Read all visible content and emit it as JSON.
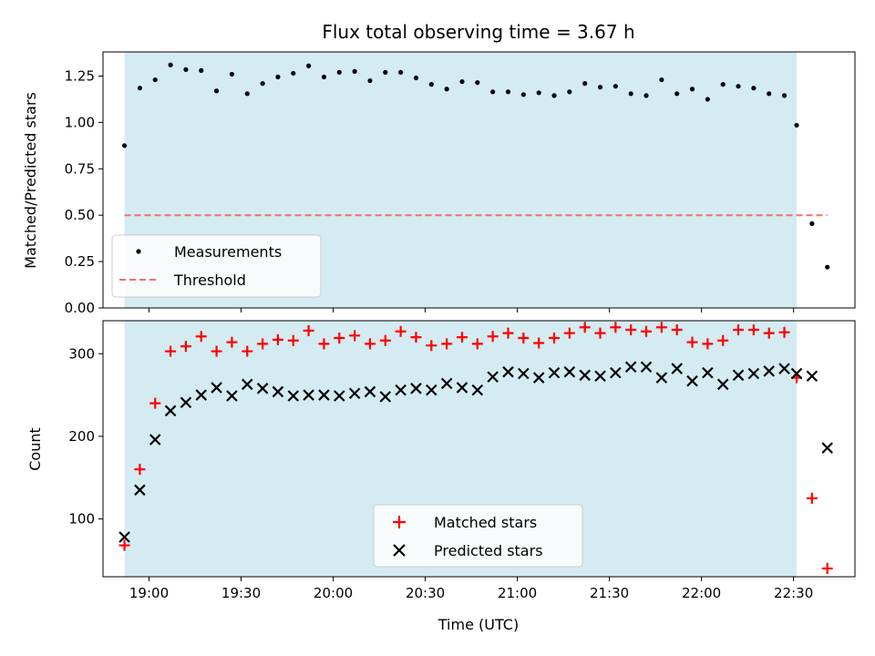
{
  "chart_data": [
    {
      "type": "scatter",
      "title": "Flux total observing time = 3.67 h",
      "ylabel": "Matched/Predicted stars",
      "xlabel": "",
      "xlim": [
        "18:45",
        "22:50"
      ],
      "ylim": [
        0,
        1.38
      ],
      "yticks": [
        "0.00",
        "0.25",
        "0.50",
        "0.75",
        "1.00",
        "1.25"
      ],
      "xticks": [
        "19:00",
        "19:30",
        "20:00",
        "20:30",
        "21:00",
        "21:30",
        "22:00",
        "22:30"
      ],
      "shaded_span": [
        "18:52",
        "22:31"
      ],
      "shade_color": "#d4ebf1",
      "legend": "lower-left",
      "series": [
        {
          "name": "Measurements",
          "marker": "dot",
          "color": "#000000",
          "x": [
            "18:52",
            "18:57",
            "19:02",
            "19:07",
            "19:12",
            "19:17",
            "19:22",
            "19:27",
            "19:32",
            "19:37",
            "19:42",
            "19:47",
            "19:52",
            "19:57",
            "20:02",
            "20:07",
            "20:12",
            "20:17",
            "20:22",
            "20:27",
            "20:32",
            "20:37",
            "20:42",
            "20:47",
            "20:52",
            "20:57",
            "21:02",
            "21:07",
            "21:12",
            "21:17",
            "21:22",
            "21:27",
            "21:32",
            "21:37",
            "21:42",
            "21:47",
            "21:52",
            "21:57",
            "22:02",
            "22:07",
            "22:12",
            "22:17",
            "22:22",
            "22:27",
            "22:31",
            "22:36",
            "22:41"
          ],
          "y": [
            0.875,
            1.185,
            1.23,
            1.31,
            1.285,
            1.28,
            1.17,
            1.26,
            1.155,
            1.21,
            1.245,
            1.265,
            1.305,
            1.245,
            1.27,
            1.275,
            1.225,
            1.27,
            1.27,
            1.24,
            1.205,
            1.18,
            1.22,
            1.215,
            1.165,
            1.165,
            1.15,
            1.16,
            1.145,
            1.165,
            1.21,
            1.19,
            1.195,
            1.155,
            1.145,
            1.23,
            1.155,
            1.18,
            1.125,
            1.205,
            1.195,
            1.185,
            1.155,
            1.145,
            0.985,
            0.455,
            0.22
          ]
        },
        {
          "name": "Threshold",
          "marker": "dashed-line",
          "color": "#f07070",
          "x": [
            "18:52",
            "22:41"
          ],
          "y": [
            0.5,
            0.5
          ]
        }
      ]
    },
    {
      "type": "scatter",
      "title": "",
      "ylabel": "Count",
      "xlabel": "Time (UTC)",
      "xlim": [
        "18:45",
        "22:50"
      ],
      "ylim": [
        30,
        340
      ],
      "yticks": [
        "100",
        "200",
        "300"
      ],
      "xticks": [
        "19:00",
        "19:30",
        "20:00",
        "20:30",
        "21:00",
        "21:30",
        "22:00",
        "22:30"
      ],
      "shaded_span": [
        "18:52",
        "22:31"
      ],
      "shade_color": "#d4ebf1",
      "legend": "lower-center",
      "series": [
        {
          "name": "Matched stars",
          "marker": "plus",
          "color": "#ff0000",
          "x": [
            "18:52",
            "18:57",
            "19:02",
            "19:07",
            "19:12",
            "19:17",
            "19:22",
            "19:27",
            "19:32",
            "19:37",
            "19:42",
            "19:47",
            "19:52",
            "19:57",
            "20:02",
            "20:07",
            "20:12",
            "20:17",
            "20:22",
            "20:27",
            "20:32",
            "20:37",
            "20:42",
            "20:47",
            "20:52",
            "20:57",
            "21:02",
            "21:07",
            "21:12",
            "21:17",
            "21:22",
            "21:27",
            "21:32",
            "21:37",
            "21:42",
            "21:47",
            "21:52",
            "21:57",
            "22:02",
            "22:07",
            "22:12",
            "22:17",
            "22:22",
            "22:27",
            "22:31",
            "22:36",
            "22:41"
          ],
          "y": [
            68,
            160,
            240,
            303,
            309,
            321,
            303,
            314,
            303,
            312,
            317,
            316,
            328,
            312,
            319,
            322,
            312,
            316,
            327,
            320,
            310,
            312,
            320,
            312,
            321,
            325,
            319,
            313,
            319,
            325,
            332,
            325,
            332,
            329,
            327,
            332,
            329,
            314,
            312,
            316,
            329,
            329,
            325,
            326,
            271,
            125,
            40
          ]
        },
        {
          "name": "Predicted stars",
          "marker": "x",
          "color": "#000000",
          "x": [
            "18:52",
            "18:57",
            "19:02",
            "19:07",
            "19:12",
            "19:17",
            "19:22",
            "19:27",
            "19:32",
            "19:37",
            "19:42",
            "19:47",
            "19:52",
            "19:57",
            "20:02",
            "20:07",
            "20:12",
            "20:17",
            "20:22",
            "20:27",
            "20:32",
            "20:37",
            "20:42",
            "20:47",
            "20:52",
            "20:57",
            "21:02",
            "21:07",
            "21:12",
            "21:17",
            "21:22",
            "21:27",
            "21:32",
            "21:37",
            "21:42",
            "21:47",
            "21:52",
            "21:57",
            "22:02",
            "22:07",
            "22:12",
            "22:17",
            "22:22",
            "22:27",
            "22:31",
            "22:36",
            "22:41"
          ],
          "y": [
            78,
            135,
            196,
            231,
            241,
            250,
            259,
            249,
            263,
            258,
            254,
            249,
            250,
            250,
            249,
            252,
            254,
            248,
            256,
            258,
            256,
            264,
            259,
            256,
            272,
            278,
            276,
            271,
            277,
            278,
            274,
            273,
            277,
            284,
            284,
            271,
            282,
            267,
            277,
            263,
            274,
            276,
            279,
            282,
            276,
            273,
            186
          ]
        }
      ]
    }
  ]
}
